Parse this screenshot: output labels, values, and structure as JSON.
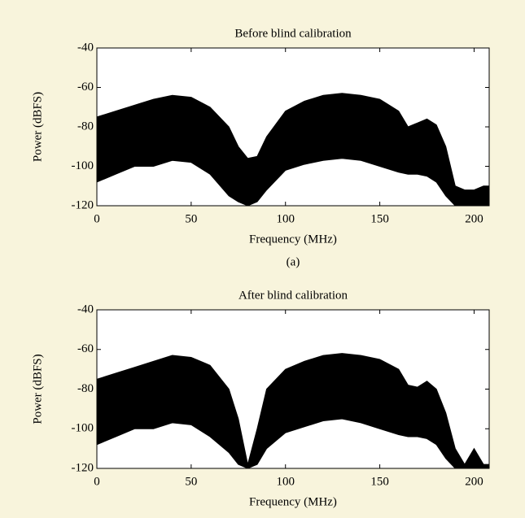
{
  "chart_data": [
    {
      "type": "band",
      "title": "Before blind calibration",
      "xlabel": "Frequency (MHz)",
      "ylabel": "Power (dBFS)",
      "caption": "(a)",
      "x": [
        0,
        10,
        20,
        30,
        40,
        50,
        60,
        70,
        75,
        80,
        85,
        90,
        100,
        110,
        120,
        130,
        140,
        150,
        160,
        165,
        170,
        175,
        180,
        185,
        190,
        195,
        200,
        205,
        208
      ],
      "series": [
        {
          "color": "#000000",
          "values": [
            -75,
            -72,
            -69,
            -66,
            -64,
            -65,
            -70,
            -80,
            -90,
            -96,
            -95,
            -85,
            -72,
            -67,
            -64,
            -63,
            -64,
            -66,
            -72,
            -80,
            -78,
            -76,
            -79,
            -90,
            -110,
            -112,
            -112,
            -110,
            -110
          ]
        },
        {
          "color": "#000000",
          "values": [
            -108,
            -104,
            -100,
            -100,
            -97,
            -98,
            -104,
            -115,
            -118,
            -120,
            -118,
            -112,
            -102,
            -99,
            -97,
            -96,
            -97,
            -100,
            -103,
            -104,
            -104,
            -105,
            -108,
            -115,
            -120,
            -120,
            -120,
            -120,
            -120
          ]
        }
      ],
      "xlim": [
        0,
        208
      ],
      "ylim": [
        -120,
        -40
      ],
      "xticks": [
        0,
        50,
        100,
        150,
        200
      ],
      "yticks": [
        -120,
        -100,
        -80,
        -60,
        -40
      ],
      "grid": false
    },
    {
      "type": "band",
      "title": "After blind calibration",
      "xlabel": "Frequency (MHz)",
      "ylabel": "Power (dBFS)",
      "x": [
        0,
        10,
        20,
        30,
        40,
        50,
        60,
        70,
        75,
        80,
        85,
        90,
        100,
        110,
        120,
        130,
        140,
        150,
        160,
        165,
        170,
        175,
        180,
        185,
        190,
        195,
        200,
        205,
        208
      ],
      "series": [
        {
          "color": "#000000",
          "values": [
            -75,
            -72,
            -69,
            -66,
            -63,
            -64,
            -68,
            -80,
            -95,
            -118,
            -100,
            -80,
            -70,
            -66,
            -63,
            -62,
            -63,
            -65,
            -70,
            -78,
            -79,
            -76,
            -80,
            -92,
            -110,
            -118,
            -110,
            -118,
            -118
          ]
        },
        {
          "color": "#000000",
          "values": [
            -108,
            -104,
            -100,
            -100,
            -97,
            -98,
            -104,
            -112,
            -118,
            -120,
            -118,
            -110,
            -102,
            -99,
            -96,
            -95,
            -97,
            -100,
            -103,
            -104,
            -104,
            -105,
            -108,
            -115,
            -120,
            -120,
            -120,
            -120,
            -120
          ]
        }
      ],
      "xlim": [
        0,
        208
      ],
      "ylim": [
        -120,
        -40
      ],
      "xticks": [
        0,
        50,
        100,
        150,
        200
      ],
      "yticks": [
        -120,
        -100,
        -80,
        -60,
        -40
      ],
      "grid": false
    }
  ]
}
